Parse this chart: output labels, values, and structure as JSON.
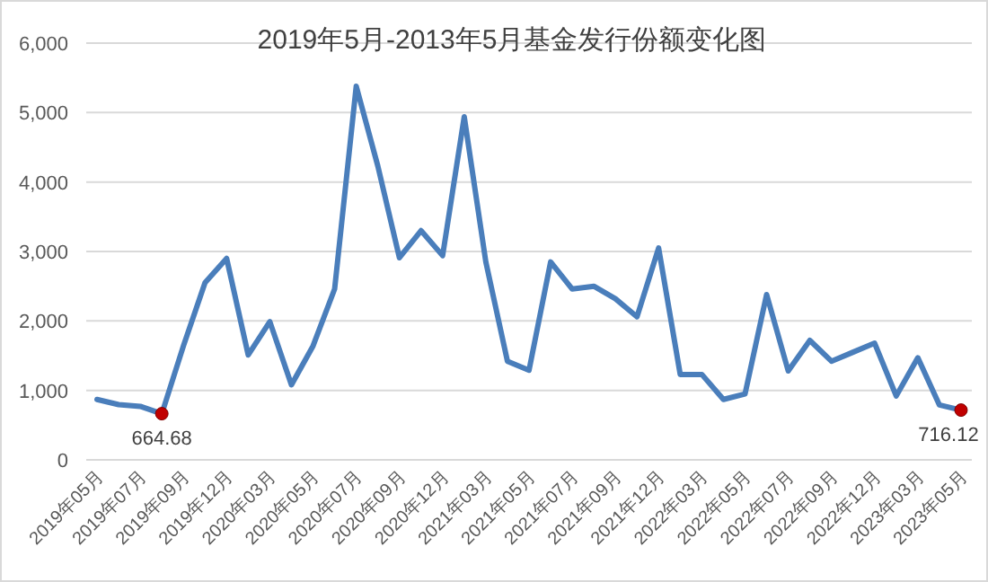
{
  "chart_data": {
    "type": "line",
    "title": "2019年5月-2013年5月基金发行份额变化图",
    "categories": [
      "2019年05月",
      null,
      "2019年07月",
      null,
      "2019年09月",
      null,
      "2019年12月",
      null,
      "2020年03月",
      null,
      "2020年05月",
      null,
      "2020年07月",
      null,
      "2020年09月",
      null,
      "2020年12月",
      null,
      "2021年03月",
      null,
      "2021年05月",
      null,
      "2021年07月",
      null,
      "2021年09月",
      null,
      "2021年12月",
      null,
      "2022年03月",
      null,
      "2022年05月",
      null,
      "2022年07月",
      null,
      "2022年09月",
      null,
      "2022年12月",
      null,
      "2023年03月",
      null,
      "2023年05月"
    ],
    "series": [
      {
        "color": "#4a7ebb",
        "values": [
          870,
          795,
          770,
          664.68,
          1640,
          2550,
          2900,
          1510,
          1990,
          1080,
          1640,
          2460,
          5380,
          4230,
          2910,
          3300,
          2940,
          4940,
          2850,
          1420,
          1290,
          2850,
          2460,
          2500,
          2320,
          2060,
          3050,
          1230,
          1230,
          870,
          950,
          2380,
          1280,
          1720,
          1420,
          1550,
          1680,
          920,
          1470,
          790,
          716.12
        ],
        "value_labels": [
          null,
          null,
          null,
          "664.68",
          null,
          null,
          null,
          null,
          null,
          null,
          null,
          null,
          null,
          null,
          null,
          null,
          null,
          null,
          null,
          null,
          null,
          null,
          null,
          null,
          null,
          null,
          null,
          null,
          null,
          null,
          null,
          null,
          null,
          null,
          null,
          null,
          null,
          null,
          null,
          null,
          "716.12"
        ]
      }
    ],
    "ylim": [
      0,
      6000
    ],
    "yticks": [
      {
        "value": 0,
        "label": "0"
      },
      {
        "value": 1000,
        "label": "1,000"
      },
      {
        "value": 2000,
        "label": "2,000"
      },
      {
        "value": 3000,
        "label": "3,000"
      },
      {
        "value": 4000,
        "label": "4,000"
      },
      {
        "value": 5000,
        "label": "5,000"
      },
      {
        "value": 6000,
        "label": "6,000"
      }
    ],
    "grid": "y"
  }
}
